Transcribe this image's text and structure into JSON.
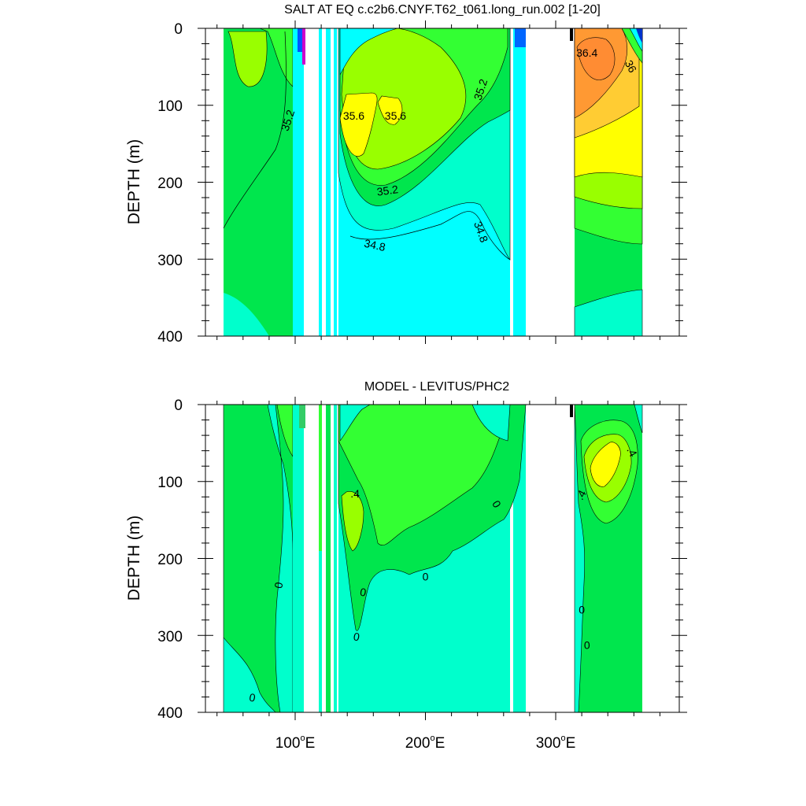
{
  "colors": {
    "cyan": "#00ffff",
    "aqua_green": "#00ffcc",
    "green": "#00e64d",
    "bright_green": "#33ff33",
    "yellow_green": "#99ff00",
    "yellow": "#ffff00",
    "gold": "#ffcc33",
    "orange": "#ff9933",
    "dark_orange": "#ff8c33",
    "magenta": "#cc00cc",
    "blue": "#0055ff",
    "line": "#000000"
  },
  "chart_data": [
    {
      "type": "contour",
      "title": "SALT AT EQ c.c2b6.CNYF.T62_t061.long_run.002 [1-20]",
      "ylabel": "DEPTH (m)",
      "xlabel": "",
      "ylim": [
        400,
        0
      ],
      "y_ticks": [
        "0",
        "100",
        "200",
        "300",
        "400"
      ],
      "x_ticks": [
        "100",
        "200",
        "300"
      ],
      "x_tick_suffix": "E",
      "contour_labels": [
        {
          "text": "35.2",
          "x": 95,
          "y": 120,
          "rot": -72
        },
        {
          "text": "35.6",
          "x": 145,
          "y": 115,
          "rot": 0
        },
        {
          "text": "35.6",
          "x": 177,
          "y": 115,
          "rot": 0
        },
        {
          "text": "35.2",
          "x": 243,
          "y": 80,
          "rot": -72
        },
        {
          "text": "35.2",
          "x": 171,
          "y": 212,
          "rot": -8
        },
        {
          "text": "34.8",
          "x": 161,
          "y": 283,
          "rot": 12
        },
        {
          "text": "34.8",
          "x": 242,
          "y": 265,
          "rot": 70
        },
        {
          "text": "36.4",
          "x": 324,
          "y": 33,
          "rot": 0
        },
        {
          "text": "36",
          "x": 357,
          "y": 50,
          "rot": 62
        }
      ]
    },
    {
      "type": "contour",
      "title": "MODEL - LEVITUS/PHC2",
      "ylabel": "DEPTH (m)",
      "xlabel": "",
      "ylim": [
        400,
        0
      ],
      "y_ticks": [
        "0",
        "100",
        "200",
        "300",
        "400"
      ],
      "x_ticks": [
        "100",
        "200",
        "300"
      ],
      "x_tick_suffix": "E",
      "contour_labels": [
        {
          "text": ".4",
          "x": 146,
          "y": 117,
          "rot": 0
        },
        {
          "text": "0",
          "x": 254,
          "y": 130,
          "rot": 60
        },
        {
          "text": "0",
          "x": 88,
          "y": 235,
          "rot": -80
        },
        {
          "text": "0",
          "x": 200,
          "y": 225,
          "rot": 0
        },
        {
          "text": "0",
          "x": 152,
          "y": 245,
          "rot": 10
        },
        {
          "text": "0",
          "x": 147,
          "y": 303,
          "rot": 10
        },
        {
          "text": "0",
          "x": 67,
          "y": 382,
          "rot": 10
        },
        {
          "text": ".4",
          "x": 358,
          "y": 62,
          "rot": 62
        },
        {
          "text": ".4",
          "x": 320,
          "y": 118,
          "rot": -62
        },
        {
          "text": "0",
          "x": 320,
          "y": 268,
          "rot": 0
        },
        {
          "text": "0",
          "x": 324,
          "y": 314,
          "rot": 0
        }
      ]
    }
  ]
}
